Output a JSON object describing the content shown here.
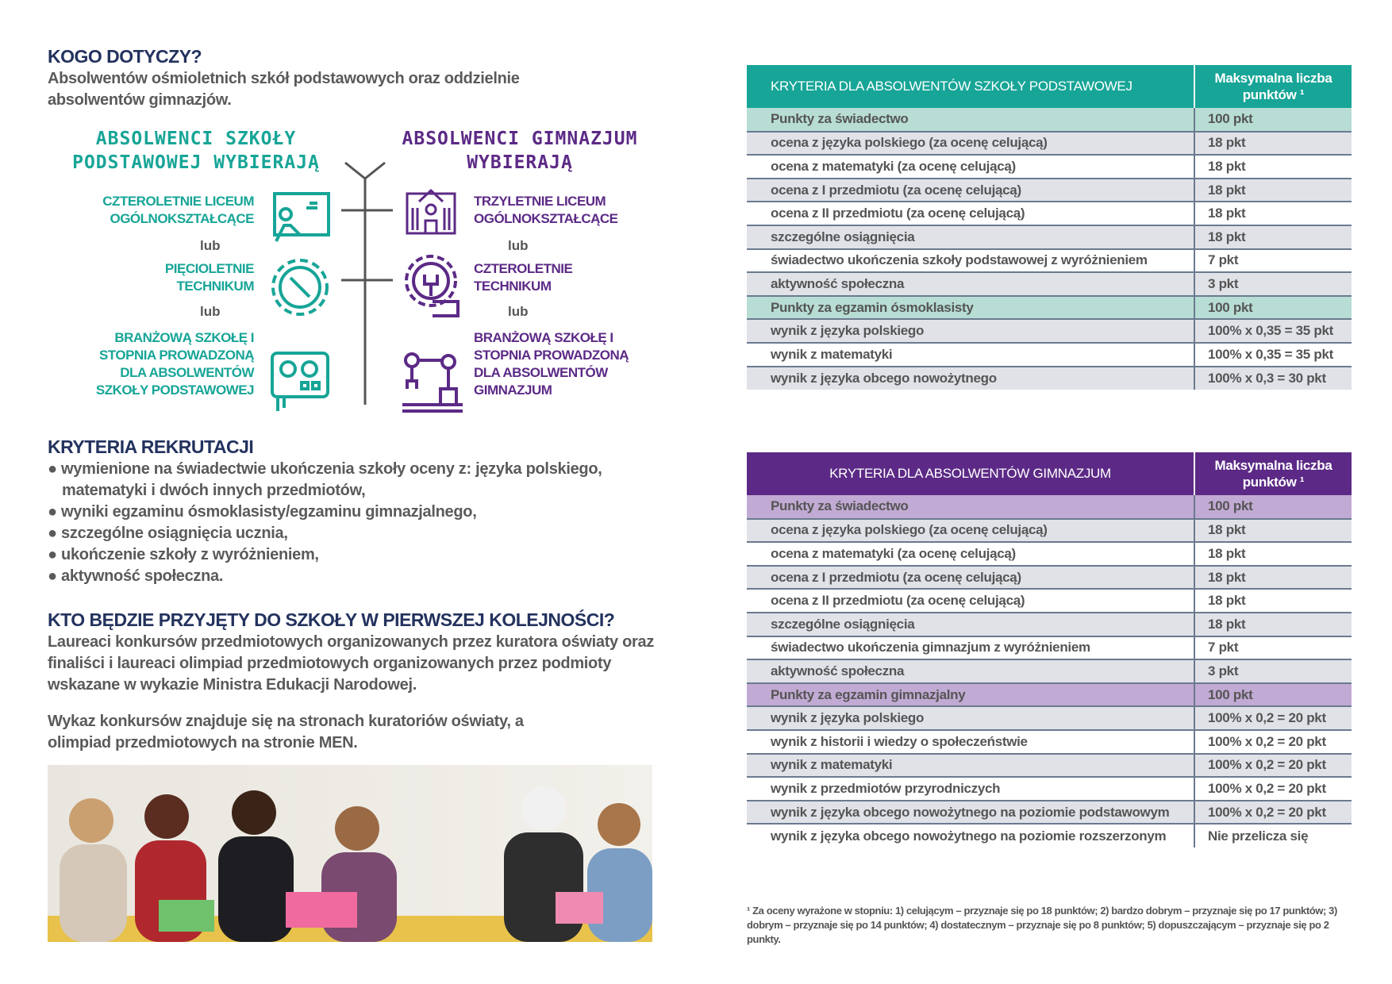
{
  "who": {
    "title": "KOGO DOTYCZY?",
    "text": "Absolwentów ośmioletnich szkół podstawowych oraz oddzielnie absolwentów gimnazjów."
  },
  "diagram": {
    "left_title": "ABSOLWENCI SZKOŁY PODSTAWOWEJ WYBIERAJĄ",
    "right_title": "ABSOLWENCI GIMNAZJUM WYBIERAJĄ",
    "left": [
      "CZTEROLETNIE LICEUM OGÓLNOKSZTAŁCĄCE",
      "PIĘCIOLETNIE TECHNIKUM",
      "BRANŻOWĄ SZKOŁĘ I STOPNIA PROWADZONĄ DLA ABSOLWENTÓW SZKOŁY PODSTAWOWEJ"
    ],
    "right": [
      "TRZYLETNIE LICEUM OGÓLNOKSZTAŁCĄCE",
      "CZTEROLETNIE TECHNIKUM",
      "BRANŻOWĄ SZKOŁĘ I STOPNIA PROWADZONĄ DLA ABSOLWENTÓW GIMNAZJUM"
    ],
    "or": "lub",
    "icons_left": [
      "teacher-board-icon",
      "gear-wrench-icon",
      "control-panel-icon"
    ],
    "icons_right": [
      "school-building-icon",
      "gear-wrench-hand-icon",
      "robot-arm-icon"
    ],
    "colors": {
      "left": "#17a597",
      "right": "#5c2a86"
    }
  },
  "criteria": {
    "title": "KRYTERIA REKRUTACJI",
    "items": [
      "wymienione na świadectwie ukończenia szkoły oceny z: języka polskiego, matematyki i dwóch innych przedmiotów,",
      "wyniki egzaminu ósmoklasisty/egzaminu gimnazjalnego,",
      "szczególne osiągnięcia ucznia,",
      "ukończenie szkoły z wyróżnieniem,",
      "aktywność społeczna."
    ]
  },
  "priority": {
    "title": "KTO BĘDZIE PRZYJĘTY DO SZKOŁY W PIERWSZEJ KOLEJNOŚCI?",
    "text1": "Laureaci konkursów przedmiotowych organizowanych przez kuratora oświaty oraz finaliści i laureaci olimpiad przedmiotowych organizowanych przez podmioty wskazane w wykazie Ministra Edukacji Narodowej.",
    "text2": "Wykaz konkursów znajduje się na stronach kuratoriów oświaty, a olimpiad przedmiotowych na stronie MEN."
  },
  "table1": {
    "header": "KRYTERIA DLA ABSOLWENTÓW SZKOŁY PODSTAWOWEJ",
    "max_header": "Maksymalna liczba punktów ¹",
    "color": "#17a597",
    "rows": [
      {
        "label": "Punkty za świadectwo",
        "value": "100 pkt",
        "section": true
      },
      {
        "label": "ocena z języka polskiego (za ocenę celującą)",
        "value": "18 pkt"
      },
      {
        "label": "ocena z matematyki (za ocenę celującą)",
        "value": "18 pkt"
      },
      {
        "label": "ocena z I przedmiotu (za ocenę celującą)",
        "value": "18 pkt"
      },
      {
        "label": "ocena z II przedmiotu (za ocenę celującą)",
        "value": "18 pkt"
      },
      {
        "label": "szczególne osiągnięcia",
        "value": "18 pkt"
      },
      {
        "label": "świadectwo ukończenia szkoły podstawowej z wyróżnieniem",
        "value": "7 pkt"
      },
      {
        "label": "aktywność społeczna",
        "value": "3 pkt"
      },
      {
        "label": "Punkty za egzamin ósmoklasisty",
        "value": "100 pkt",
        "section": true
      },
      {
        "label": "wynik z języka polskiego",
        "value": "100% x 0,35 = 35 pkt"
      },
      {
        "label": "wynik z matematyki",
        "value": "100% x 0,35 = 35 pkt"
      },
      {
        "label": "wynik z języka obcego nowożytnego",
        "value": "100% x 0,3 = 30 pkt"
      }
    ]
  },
  "table2": {
    "header": "KRYTERIA DLA ABSOLWENTÓW GIMNAZJUM",
    "max_header": "Maksymalna liczba punktów ¹",
    "color": "#5c2a86",
    "rows": [
      {
        "label": "Punkty za świadectwo",
        "value": "100 pkt",
        "section": true
      },
      {
        "label": "ocena z języka polskiego (za ocenę celującą)",
        "value": "18 pkt"
      },
      {
        "label": "ocena z matematyki (za ocenę celującą)",
        "value": "18 pkt"
      },
      {
        "label": "ocena z I przedmiotu (za ocenę celującą)",
        "value": "18 pkt"
      },
      {
        "label": "ocena z II przedmiotu (za ocenę celującą)",
        "value": "18 pkt"
      },
      {
        "label": "szczególne osiągnięcia",
        "value": "18 pkt"
      },
      {
        "label": "świadectwo ukończenia gimnazjum z wyróżnieniem",
        "value": "7 pkt"
      },
      {
        "label": "aktywność społeczna",
        "value": "3 pkt"
      },
      {
        "label": "Punkty za egzamin gimnazjalny",
        "value": "100 pkt",
        "section": true
      },
      {
        "label": "wynik z języka polskiego",
        "value": "100% x 0,2 = 20 pkt"
      },
      {
        "label": "wynik z historii i wiedzy o społeczeństwie",
        "value": "100% x 0,2 = 20 pkt"
      },
      {
        "label": "wynik z matematyki",
        "value": "100% x 0,2 = 20 pkt"
      },
      {
        "label": "wynik z przedmiotów przyrodniczych",
        "value": "100% x 0,2 = 20 pkt"
      },
      {
        "label": "wynik z języka obcego nowożytnego na poziomie podstawowym",
        "value": "100% x 0,2 = 20 pkt"
      },
      {
        "label": "wynik z języka obcego nowożytnego na poziomie rozszerzonym",
        "value": "Nie przelicza się"
      }
    ]
  },
  "footnote": "¹ Za oceny wyrażone w stopniu: 1) celującym – przyznaje się po 18 punktów; 2) bardzo dobrym – przyznaje się po 17 punktów; 3) dobrym – przyznaje się po 14 punktów; 4) dostatecznym – przyznaje się po 8 punktów; 5) dopuszczającym – przyznaje się po 2 punkty."
}
